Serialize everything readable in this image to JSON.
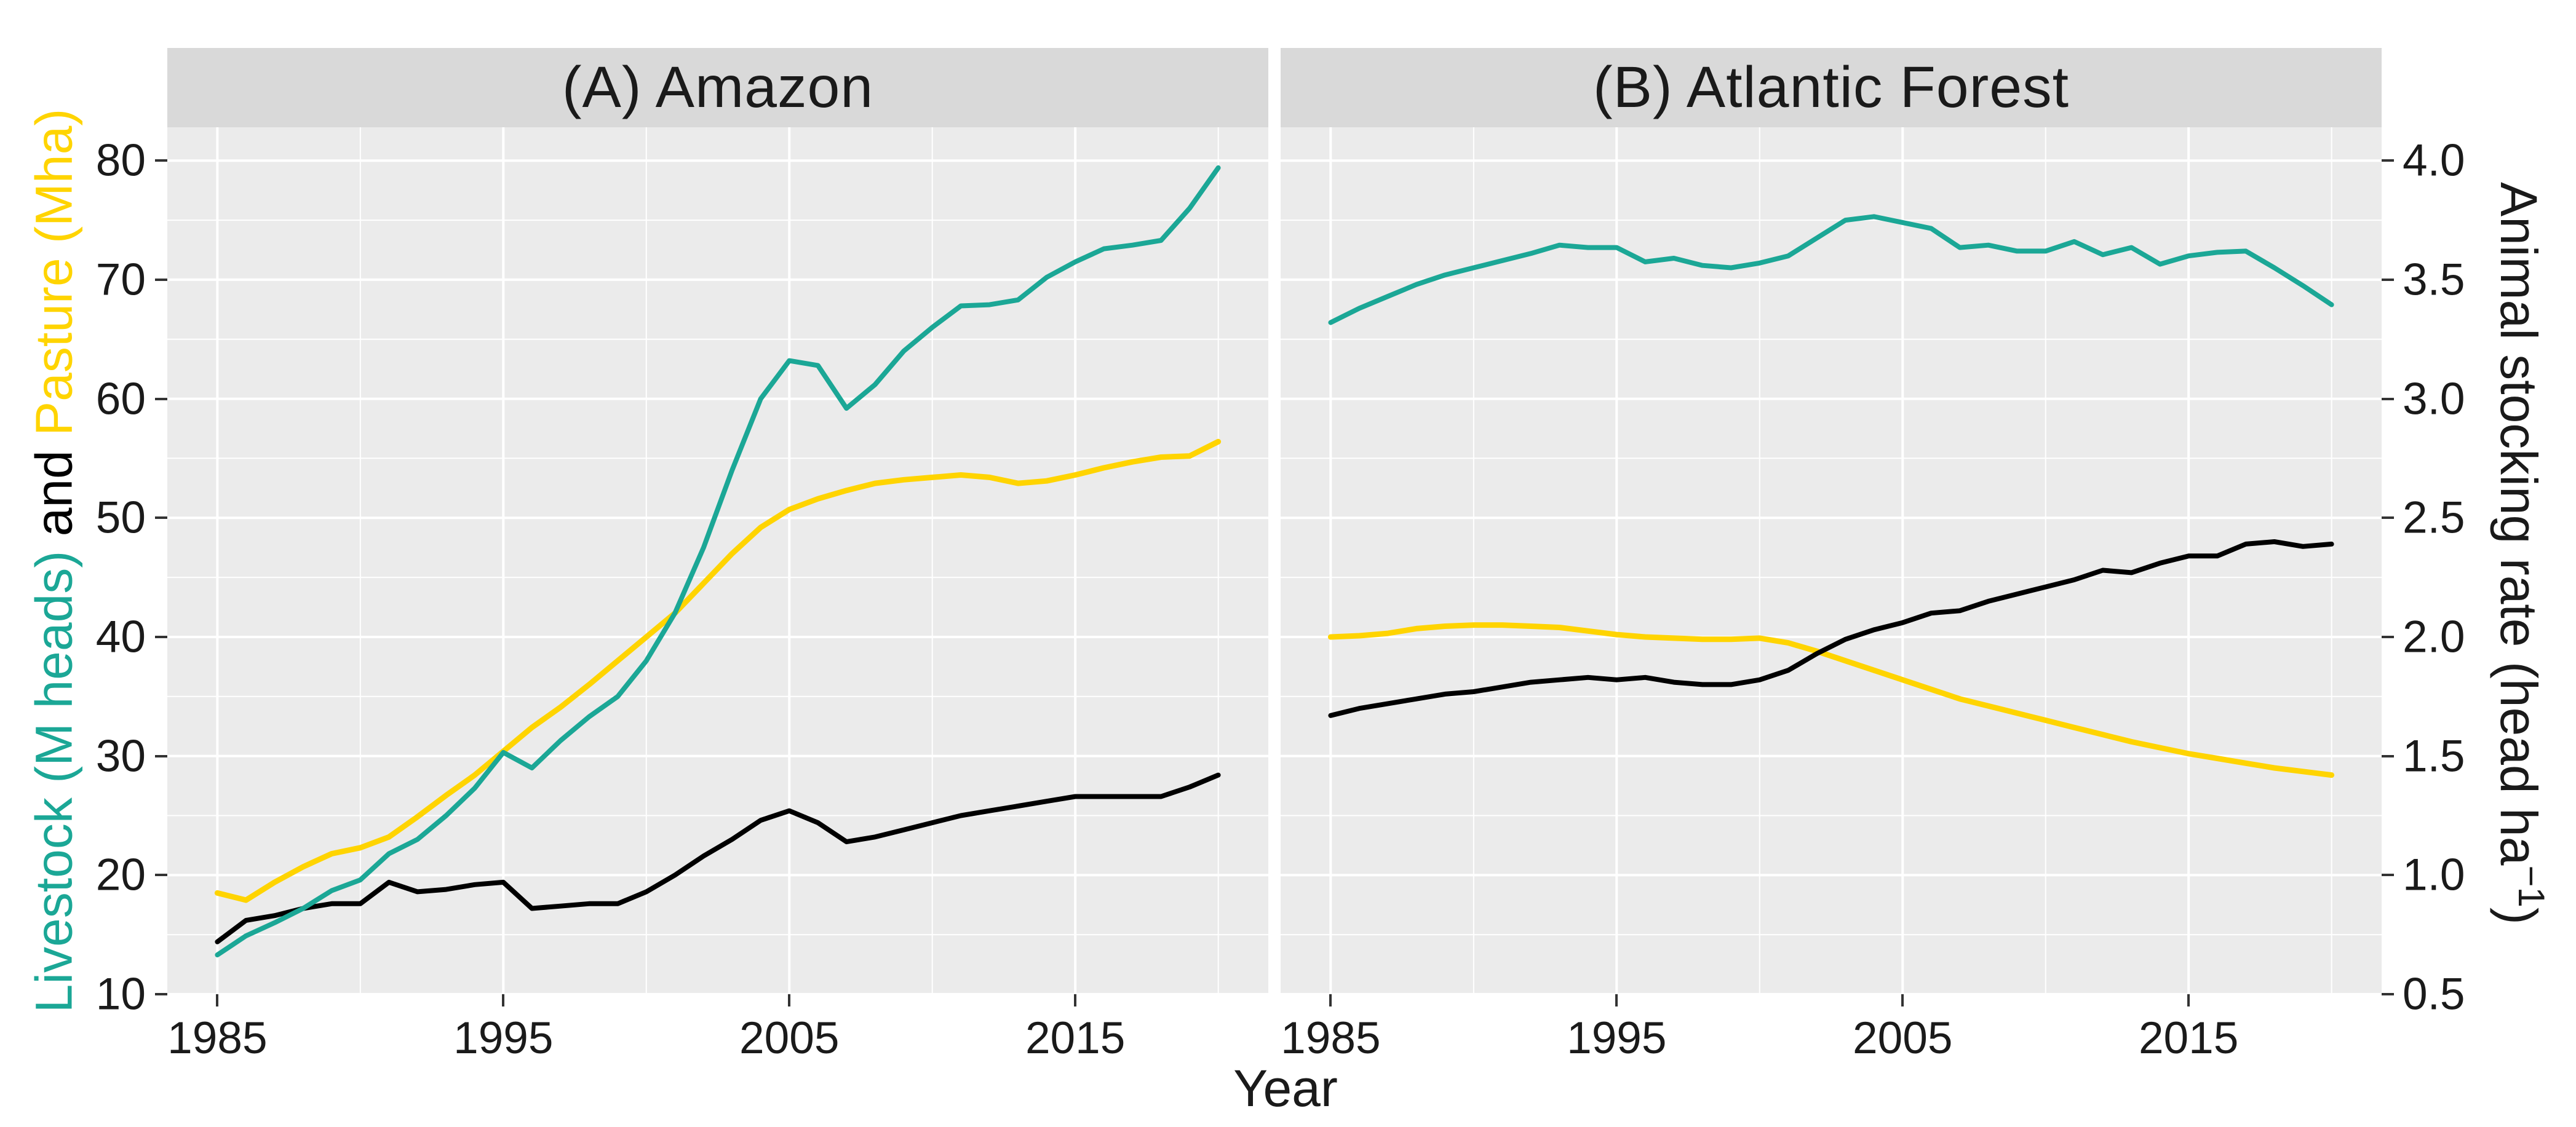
{
  "colors": {
    "livestock_teal": "#1BA796",
    "pasture_yellow": "#FFD400",
    "stocking_black": "#000000",
    "panel_bg": "#EBEBEB",
    "strip_bg": "#D9D9D9",
    "grid": "#FFFFFF",
    "tick_mark": "#333333",
    "text": "#1A1A1A"
  },
  "x_axis": {
    "title": "Year",
    "major_ticks": [
      1985,
      1995,
      2005,
      2015
    ],
    "minor_ticks": [
      1990,
      2000,
      2010,
      2020
    ],
    "range": [
      1983.25,
      2021.75
    ]
  },
  "y_left": {
    "title_parts": [
      {
        "text": "Livestock (M heads)",
        "color_key": "livestock_teal"
      },
      {
        "text": " and ",
        "color_key": "stocking_black"
      },
      {
        "text": "Pasture (Mha)",
        "color_key": "pasture_yellow"
      }
    ],
    "major_ticks": [
      80,
      70,
      60,
      50,
      40,
      30,
      20,
      10
    ],
    "minor_ticks": [
      75,
      65,
      55,
      45,
      35,
      25,
      15
    ],
    "range": [
      10,
      82.8
    ]
  },
  "y_right": {
    "title_prefix": "Animal stocking rate (head ha",
    "title_sup": "−1",
    "title_suffix": ")",
    "tick_labels": [
      "4.0",
      "3.5",
      "3.0",
      "2.5",
      "2.0",
      "1.5",
      "1.0",
      "0.5"
    ],
    "left_axis_equivalent_factor": 20
  },
  "chart_data": [
    {
      "type": "line",
      "panel_label": "(A) Amazon",
      "x": [
        1985,
        1986,
        1987,
        1988,
        1989,
        1990,
        1991,
        1992,
        1993,
        1994,
        1995,
        1996,
        1997,
        1998,
        1999,
        2000,
        2001,
        2002,
        2003,
        2004,
        2005,
        2006,
        2007,
        2008,
        2009,
        2010,
        2011,
        2012,
        2013,
        2014,
        2015,
        2016,
        2017,
        2018,
        2019,
        2020
      ],
      "series": [
        {
          "name": "Pasture (Mha)",
          "color_key": "pasture_yellow",
          "axis": "left",
          "width": 9,
          "values": [
            18.5,
            17.9,
            19.4,
            20.7,
            21.8,
            22.3,
            23.2,
            24.9,
            26.7,
            28.4,
            30.4,
            32.4,
            34.1,
            36.0,
            38.0,
            40.0,
            42.0,
            44.5,
            47.0,
            49.2,
            50.7,
            51.6,
            52.3,
            52.9,
            53.2,
            53.4,
            53.6,
            53.4,
            52.9,
            53.1,
            53.6,
            54.2,
            54.7,
            55.1,
            55.2,
            56.4
          ]
        },
        {
          "name": "Animal stocking rate (head ha-1)",
          "color_key": "stocking_black",
          "axis": "right",
          "width": 8,
          "values": [
            0.72,
            0.81,
            0.83,
            0.86,
            0.88,
            0.88,
            0.97,
            0.93,
            0.94,
            0.96,
            0.97,
            0.86,
            0.87,
            0.88,
            0.88,
            0.93,
            1.0,
            1.08,
            1.15,
            1.23,
            1.27,
            1.22,
            1.14,
            1.16,
            1.19,
            1.22,
            1.25,
            1.27,
            1.29,
            1.31,
            1.33,
            1.33,
            1.33,
            1.33,
            1.37,
            1.42
          ]
        },
        {
          "name": "Livestock (M heads)",
          "color_key": "livestock_teal",
          "axis": "left",
          "width": 8,
          "values": [
            13.3,
            14.9,
            16.0,
            17.2,
            18.7,
            19.6,
            21.8,
            23.0,
            25.0,
            27.3,
            30.3,
            29.0,
            31.3,
            33.3,
            35.0,
            38.0,
            42.0,
            47.5,
            54.0,
            60.0,
            63.2,
            62.8,
            59.2,
            61.2,
            64.0,
            66.0,
            67.8,
            67.9,
            68.3,
            70.2,
            71.5,
            72.6,
            72.9,
            73.3,
            76.0,
            79.4
          ]
        }
      ]
    },
    {
      "type": "line",
      "panel_label": "(B) Atlantic Forest",
      "x": [
        1985,
        1986,
        1987,
        1988,
        1989,
        1990,
        1991,
        1992,
        1993,
        1994,
        1995,
        1996,
        1997,
        1998,
        1999,
        2000,
        2001,
        2002,
        2003,
        2004,
        2005,
        2006,
        2007,
        2008,
        2009,
        2010,
        2011,
        2012,
        2013,
        2014,
        2015,
        2016,
        2017,
        2018,
        2019,
        2020
      ],
      "series": [
        {
          "name": "Pasture (Mha)",
          "color_key": "pasture_yellow",
          "axis": "left",
          "width": 9,
          "values": [
            40.0,
            40.1,
            40.3,
            40.7,
            40.9,
            41.0,
            41.0,
            40.9,
            40.8,
            40.5,
            40.2,
            40.0,
            39.9,
            39.8,
            39.8,
            39.9,
            39.5,
            38.8,
            38.0,
            37.2,
            36.4,
            35.6,
            34.8,
            34.2,
            33.6,
            33.0,
            32.4,
            31.8,
            31.2,
            30.7,
            30.2,
            29.8,
            29.4,
            29.0,
            28.7,
            28.4
          ]
        },
        {
          "name": "Animal stocking rate (head ha-1)",
          "color_key": "stocking_black",
          "axis": "right",
          "width": 8,
          "values": [
            1.67,
            1.7,
            1.72,
            1.74,
            1.76,
            1.77,
            1.79,
            1.81,
            1.82,
            1.83,
            1.82,
            1.83,
            1.81,
            1.8,
            1.8,
            1.82,
            1.86,
            1.93,
            1.99,
            2.03,
            2.06,
            2.1,
            2.11,
            2.15,
            2.18,
            2.21,
            2.24,
            2.28,
            2.27,
            2.31,
            2.34,
            2.34,
            2.39,
            2.4,
            2.38,
            2.39
          ]
        },
        {
          "name": "Livestock (M heads)",
          "color_key": "livestock_teal",
          "axis": "left",
          "width": 8,
          "values": [
            66.4,
            67.6,
            68.6,
            69.6,
            70.4,
            71.0,
            71.6,
            72.2,
            72.9,
            72.7,
            72.7,
            71.5,
            71.8,
            71.2,
            71.0,
            71.4,
            72.0,
            73.5,
            75.0,
            75.3,
            74.8,
            74.3,
            72.7,
            72.9,
            72.4,
            72.4,
            73.2,
            72.1,
            72.7,
            71.3,
            72.0,
            72.3,
            72.4,
            71.0,
            69.5,
            67.9
          ]
        }
      ]
    }
  ]
}
